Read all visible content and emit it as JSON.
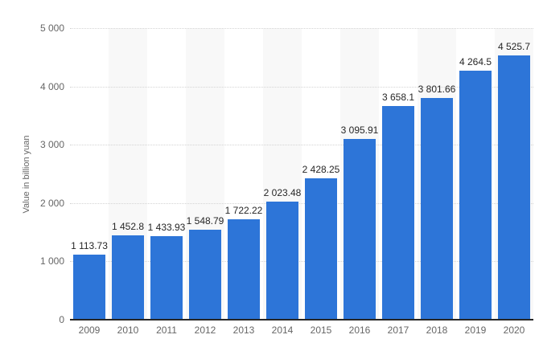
{
  "chart_data": {
    "type": "bar",
    "title": "",
    "xlabel": "",
    "ylabel": "Value in billion yuan",
    "categories": [
      "2009",
      "2010",
      "2011",
      "2012",
      "2013",
      "2014",
      "2015",
      "2016",
      "2017",
      "2018",
      "2019",
      "2020"
    ],
    "values": [
      1113.73,
      1452.8,
      1433.93,
      1548.79,
      1722.22,
      2023.48,
      2428.25,
      3095.91,
      3658.1,
      3801.66,
      4264.5,
      4525.7
    ],
    "value_labels": [
      "1 113.73",
      "1 452.8",
      "1 433.93",
      "1 548.79",
      "1 722.22",
      "2 023.48",
      "2 428.25",
      "3 095.91",
      "3 658.1",
      "3 801.66",
      "4 264.5",
      "4 525.7"
    ],
    "ylim": [
      0,
      5000
    ],
    "yticks": {
      "values": [
        0,
        1000,
        2000,
        3000,
        4000,
        5000
      ],
      "labels": [
        "0",
        "1 000",
        "2 000",
        "3 000",
        "4 000",
        "5 000"
      ]
    },
    "grid": "horizontal-dotted",
    "legend": "none",
    "plot_bands": "alternate columns shaded starting with second column",
    "colors": {
      "bar": "#2d75d8",
      "band": "#f8f8f8",
      "grid": "#d4d4d4",
      "axis_line": "#262626",
      "tick_text": "#666666",
      "label_text": "#262626",
      "background": "#ffffff"
    }
  }
}
